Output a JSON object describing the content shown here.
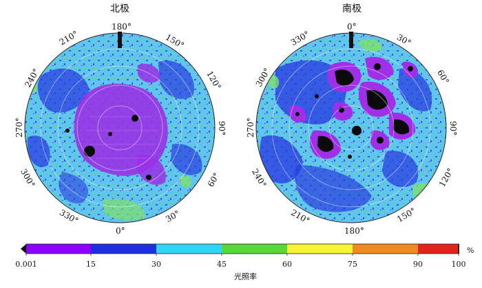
{
  "panels": {
    "north": {
      "title": "北极",
      "labels": {
        "top": "180°",
        "ul": "210°",
        "ur": "150°",
        "l240": "240°",
        "r120": "120°",
        "l270": "270°",
        "r90": "90°",
        "l300": "300°",
        "r60": "60°",
        "l330": "330°",
        "r30": "30°",
        "bottom": "0°"
      }
    },
    "south": {
      "title": "南极",
      "labels": {
        "top": "0°",
        "ul": "330°",
        "ur": "30°",
        "l300": "300°",
        "r60": "60°",
        "l270": "270°",
        "r90": "90°",
        "l240": "240°",
        "r120": "120°",
        "l210": "210°",
        "r150": "150°",
        "bottom": "180°"
      }
    }
  },
  "colorbar": {
    "ticks": [
      "0.001",
      "15",
      "30",
      "45",
      "60",
      "75",
      "90",
      "100"
    ],
    "unit": "%",
    "title": "光照率",
    "colors": [
      "#8b00ff",
      "#1f2fe0",
      "#2fd5f5",
      "#58d838",
      "#f7f335",
      "#f08a22",
      "#e3241a"
    ]
  }
}
